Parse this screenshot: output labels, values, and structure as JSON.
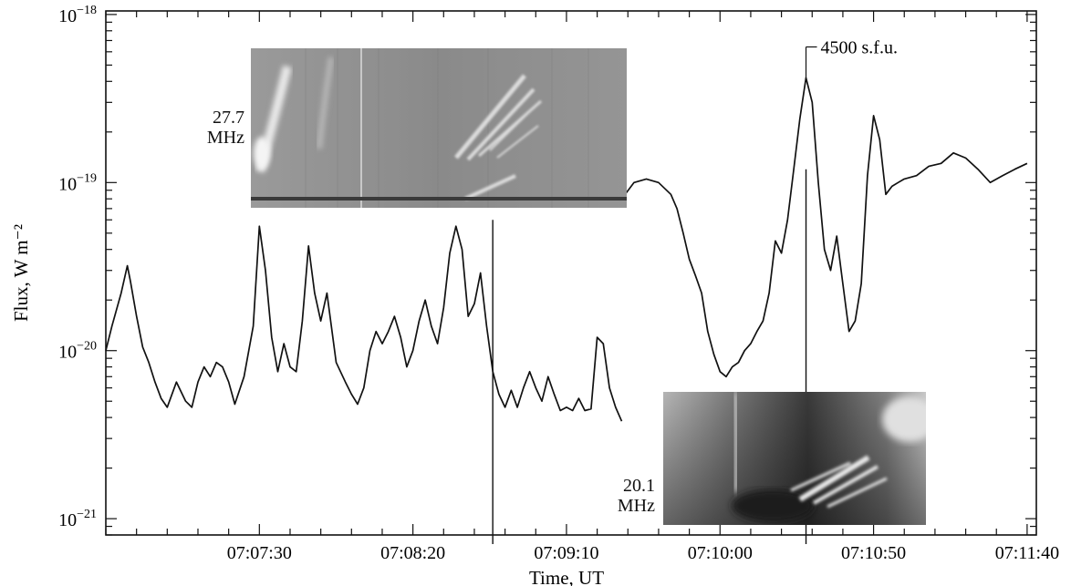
{
  "chart_data": {
    "type": "line",
    "xlabel": "Time, UT",
    "ylabel": "Flux, W m⁻²",
    "yscale": "log",
    "ylim": [
      8e-22,
      1.05e-18
    ],
    "xlim": [
      "07:06:40",
      "07:11:43"
    ],
    "x_ticks": [
      "07:07:30",
      "07:08:20",
      "07:09:10",
      "07:10:00",
      "07:10:50",
      "07:11:40"
    ],
    "y_ticks": [
      {
        "value": 1e-18,
        "mantissa": "10",
        "exponent": "−18"
      },
      {
        "value": 1e-19,
        "mantissa": "10",
        "exponent": "−19"
      },
      {
        "value": 1e-20,
        "mantissa": "10",
        "exponent": "−20"
      },
      {
        "value": 1e-21,
        "mantissa": "10",
        "exponent": "−21"
      }
    ],
    "grid": false,
    "series": [
      {
        "segment": 1,
        "x": [
          "07:06:40",
          "07:06:42",
          "07:06:45",
          "07:06:47",
          "07:06:48",
          "07:06:50",
          "07:06:52",
          "07:06:54",
          "07:06:56",
          "07:06:58",
          "07:07:00",
          "07:07:03",
          "07:07:06",
          "07:07:08",
          "07:07:10",
          "07:07:12",
          "07:07:14",
          "07:07:16",
          "07:07:18",
          "07:07:20",
          "07:07:22",
          "07:07:25",
          "07:07:28",
          "07:07:30",
          "07:07:32",
          "07:07:34",
          "07:07:36",
          "07:07:38",
          "07:07:40",
          "07:07:42",
          "07:07:44",
          "07:07:46",
          "07:07:48",
          "07:07:50",
          "07:07:52",
          "07:07:55",
          "07:07:58",
          "07:08:00",
          "07:08:02",
          "07:08:04",
          "07:08:06",
          "07:08:08",
          "07:08:10",
          "07:08:12",
          "07:08:14",
          "07:08:16",
          "07:08:18",
          "07:08:20",
          "07:08:22",
          "07:08:24",
          "07:08:26",
          "07:08:28",
          "07:08:30",
          "07:08:32",
          "07:08:34",
          "07:08:36",
          "07:08:38",
          "07:08:40",
          "07:08:42",
          "07:08:44",
          "07:08:46",
          "07:08:48",
          "07:08:50",
          "07:08:52",
          "07:08:54",
          "07:08:56",
          "07:08:58",
          "07:09:00",
          "07:09:02",
          "07:09:04",
          "07:09:06",
          "07:09:08",
          "07:09:10",
          "07:09:12",
          "07:09:14",
          "07:09:16",
          "07:09:18",
          "07:09:20",
          "07:09:22",
          "07:09:24",
          "07:09:26",
          "07:09:28"
        ],
        "y": [
          1e-20,
          1.4e-20,
          2.2e-20,
          3.2e-20,
          2.6e-20,
          1.6e-20,
          1.05e-20,
          8.5e-21,
          6.5e-21,
          5.2e-21,
          4.6e-21,
          6.5e-21,
          5e-21,
          4.6e-21,
          6.5e-21,
          8e-21,
          7e-21,
          8.5e-21,
          8e-21,
          6.5e-21,
          4.8e-21,
          7e-21,
          1.4e-20,
          5.5e-20,
          3e-20,
          1.2e-20,
          7.5e-21,
          1.1e-20,
          8e-21,
          7.5e-21,
          1.5e-20,
          4.2e-20,
          2.2e-20,
          1.5e-20,
          2.2e-20,
          8.5e-21,
          6.5e-21,
          5.5e-21,
          4.8e-21,
          6e-21,
          1e-20,
          1.3e-20,
          1.1e-20,
          1.3e-20,
          1.6e-20,
          1.2e-20,
          8e-21,
          1e-20,
          1.5e-20,
          2e-20,
          1.4e-20,
          1.1e-20,
          1.8e-20,
          3.8e-20,
          5.5e-20,
          4e-20,
          1.6e-20,
          1.9e-20,
          2.9e-20,
          1.4e-20,
          7.5e-21,
          5.5e-21,
          4.6e-21,
          5.8e-21,
          4.6e-21,
          6e-21,
          7.5e-21,
          6e-21,
          5e-21,
          7e-21,
          5.5e-21,
          4.4e-21,
          4.6e-21,
          4.4e-21,
          5.2e-21,
          4.4e-21,
          4.5e-21,
          1.2e-20,
          1.1e-20,
          6e-21,
          4.6e-21,
          3.8e-21
        ]
      },
      {
        "segment": 2,
        "x": [
          "07:09:28",
          "07:09:32",
          "07:09:36",
          "07:09:40",
          "07:09:44",
          "07:09:46",
          "07:09:48",
          "07:09:50",
          "07:09:52",
          "07:09:54",
          "07:09:56",
          "07:09:58",
          "07:10:00",
          "07:10:02",
          "07:10:04",
          "07:10:06",
          "07:10:08",
          "07:10:10",
          "07:10:12",
          "07:10:14",
          "07:10:16",
          "07:10:18",
          "07:10:20",
          "07:10:22",
          "07:10:24",
          "07:10:26",
          "07:10:28",
          "07:10:30",
          "07:10:32",
          "07:10:34",
          "07:10:36",
          "07:10:38",
          "07:10:40",
          "07:10:42",
          "07:10:44",
          "07:10:46",
          "07:10:48",
          "07:10:50",
          "07:10:52",
          "07:10:54",
          "07:10:56",
          "07:10:58",
          "07:11:00",
          "07:11:04",
          "07:11:08",
          "07:11:12",
          "07:11:16",
          "07:11:20",
          "07:11:24",
          "07:11:28",
          "07:11:32",
          "07:11:36",
          "07:11:40"
        ],
        "y": [
          8e-20,
          1e-19,
          1.05e-19,
          1e-19,
          8.5e-20,
          7e-20,
          5e-20,
          3.5e-20,
          2.8e-20,
          2.2e-20,
          1.3e-20,
          9.5e-21,
          7.5e-21,
          7e-21,
          8e-21,
          8.5e-21,
          1e-20,
          1.1e-20,
          1.3e-20,
          1.5e-20,
          2.2e-20,
          4.5e-20,
          3.8e-20,
          6e-20,
          1.2e-19,
          2.4e-19,
          4.2e-19,
          3e-19,
          1e-19,
          4e-20,
          3e-20,
          4.8e-20,
          2.5e-20,
          1.3e-20,
          1.5e-20,
          2.5e-20,
          1.1e-19,
          2.5e-19,
          1.8e-19,
          8.5e-20,
          9.5e-20,
          1e-19,
          1.05e-19,
          1.1e-19,
          1.25e-19,
          1.3e-19,
          1.5e-19,
          1.4e-19,
          1.2e-19,
          1e-19,
          1.1e-19,
          1.2e-19,
          1.3e-19
        ]
      }
    ],
    "markers": [
      {
        "x": "07:08:46",
        "y_top": 6e-20
      },
      {
        "x": "07:10:28",
        "y_top": 1.2e-19
      }
    ],
    "annotations": [
      {
        "text": "4500 s.f.u.",
        "x": "07:10:28",
        "y": 4.3e-19
      }
    ],
    "insets": [
      {
        "name": "spectrogram-top",
        "frequency_label": "27.7",
        "unit_label": "MHz"
      },
      {
        "name": "spectrogram-bottom",
        "frequency_label": "20.1",
        "unit_label": "MHz"
      }
    ]
  },
  "colors": {
    "line": "#111111",
    "axis": "#111111",
    "background": "#ffffff"
  }
}
